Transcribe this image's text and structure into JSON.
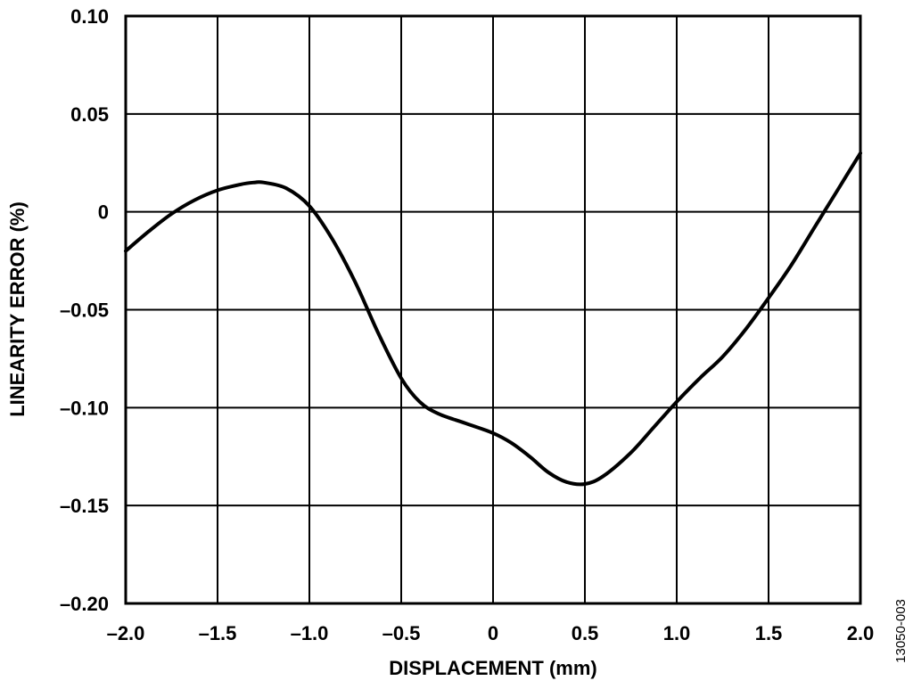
{
  "chart_data": {
    "type": "line",
    "title": "",
    "xlabel": "DISPLACEMENT (mm)",
    "ylabel": "LINEARITY ERROR (%)",
    "xlim": [
      -2.0,
      2.0
    ],
    "ylim": [
      -0.2,
      0.1
    ],
    "grid": true,
    "legend": null,
    "x_ticks": [
      -2.0,
      -1.5,
      -1.0,
      -0.5,
      0,
      0.5,
      1.0,
      1.5,
      2.0
    ],
    "x_tick_labels": [
      "–2.0",
      "–1.5",
      "–1.0",
      "–0.5",
      "0",
      "0.5",
      "1.0",
      "1.5",
      "2.0"
    ],
    "y_ticks": [
      0.1,
      0.05,
      0,
      -0.05,
      -0.1,
      -0.15,
      -0.2
    ],
    "y_tick_labels": [
      "0.10",
      "0.05",
      "0",
      "–0.05",
      "–0.10",
      "–0.15",
      "–0.20"
    ],
    "series": [
      {
        "name": "Linearity Error",
        "color": "#000000",
        "x": [
          -2.0,
          -1.875,
          -1.75,
          -1.625,
          -1.5,
          -1.375,
          -1.3,
          -1.25,
          -1.125,
          -1.0,
          -0.875,
          -0.75,
          -0.625,
          -0.5,
          -0.4,
          -0.3,
          -0.15,
          0.0,
          0.1,
          0.2,
          0.3,
          0.4,
          0.5,
          0.6,
          0.75,
          0.875,
          1.0,
          1.125,
          1.25,
          1.375,
          1.5,
          1.625,
          1.75,
          1.875,
          2.0
        ],
        "y": [
          -0.02,
          -0.01,
          -0.001,
          0.006,
          0.011,
          0.014,
          0.015,
          0.015,
          0.012,
          0.003,
          -0.014,
          -0.036,
          -0.062,
          -0.085,
          -0.097,
          -0.103,
          -0.108,
          -0.113,
          -0.118,
          -0.125,
          -0.133,
          -0.138,
          -0.139,
          -0.135,
          -0.123,
          -0.11,
          -0.097,
          -0.085,
          -0.074,
          -0.06,
          -0.044,
          -0.027,
          -0.008,
          0.011,
          0.03
        ]
      }
    ],
    "annotations": [
      "13050-003"
    ]
  },
  "figure_id": "13050-003"
}
